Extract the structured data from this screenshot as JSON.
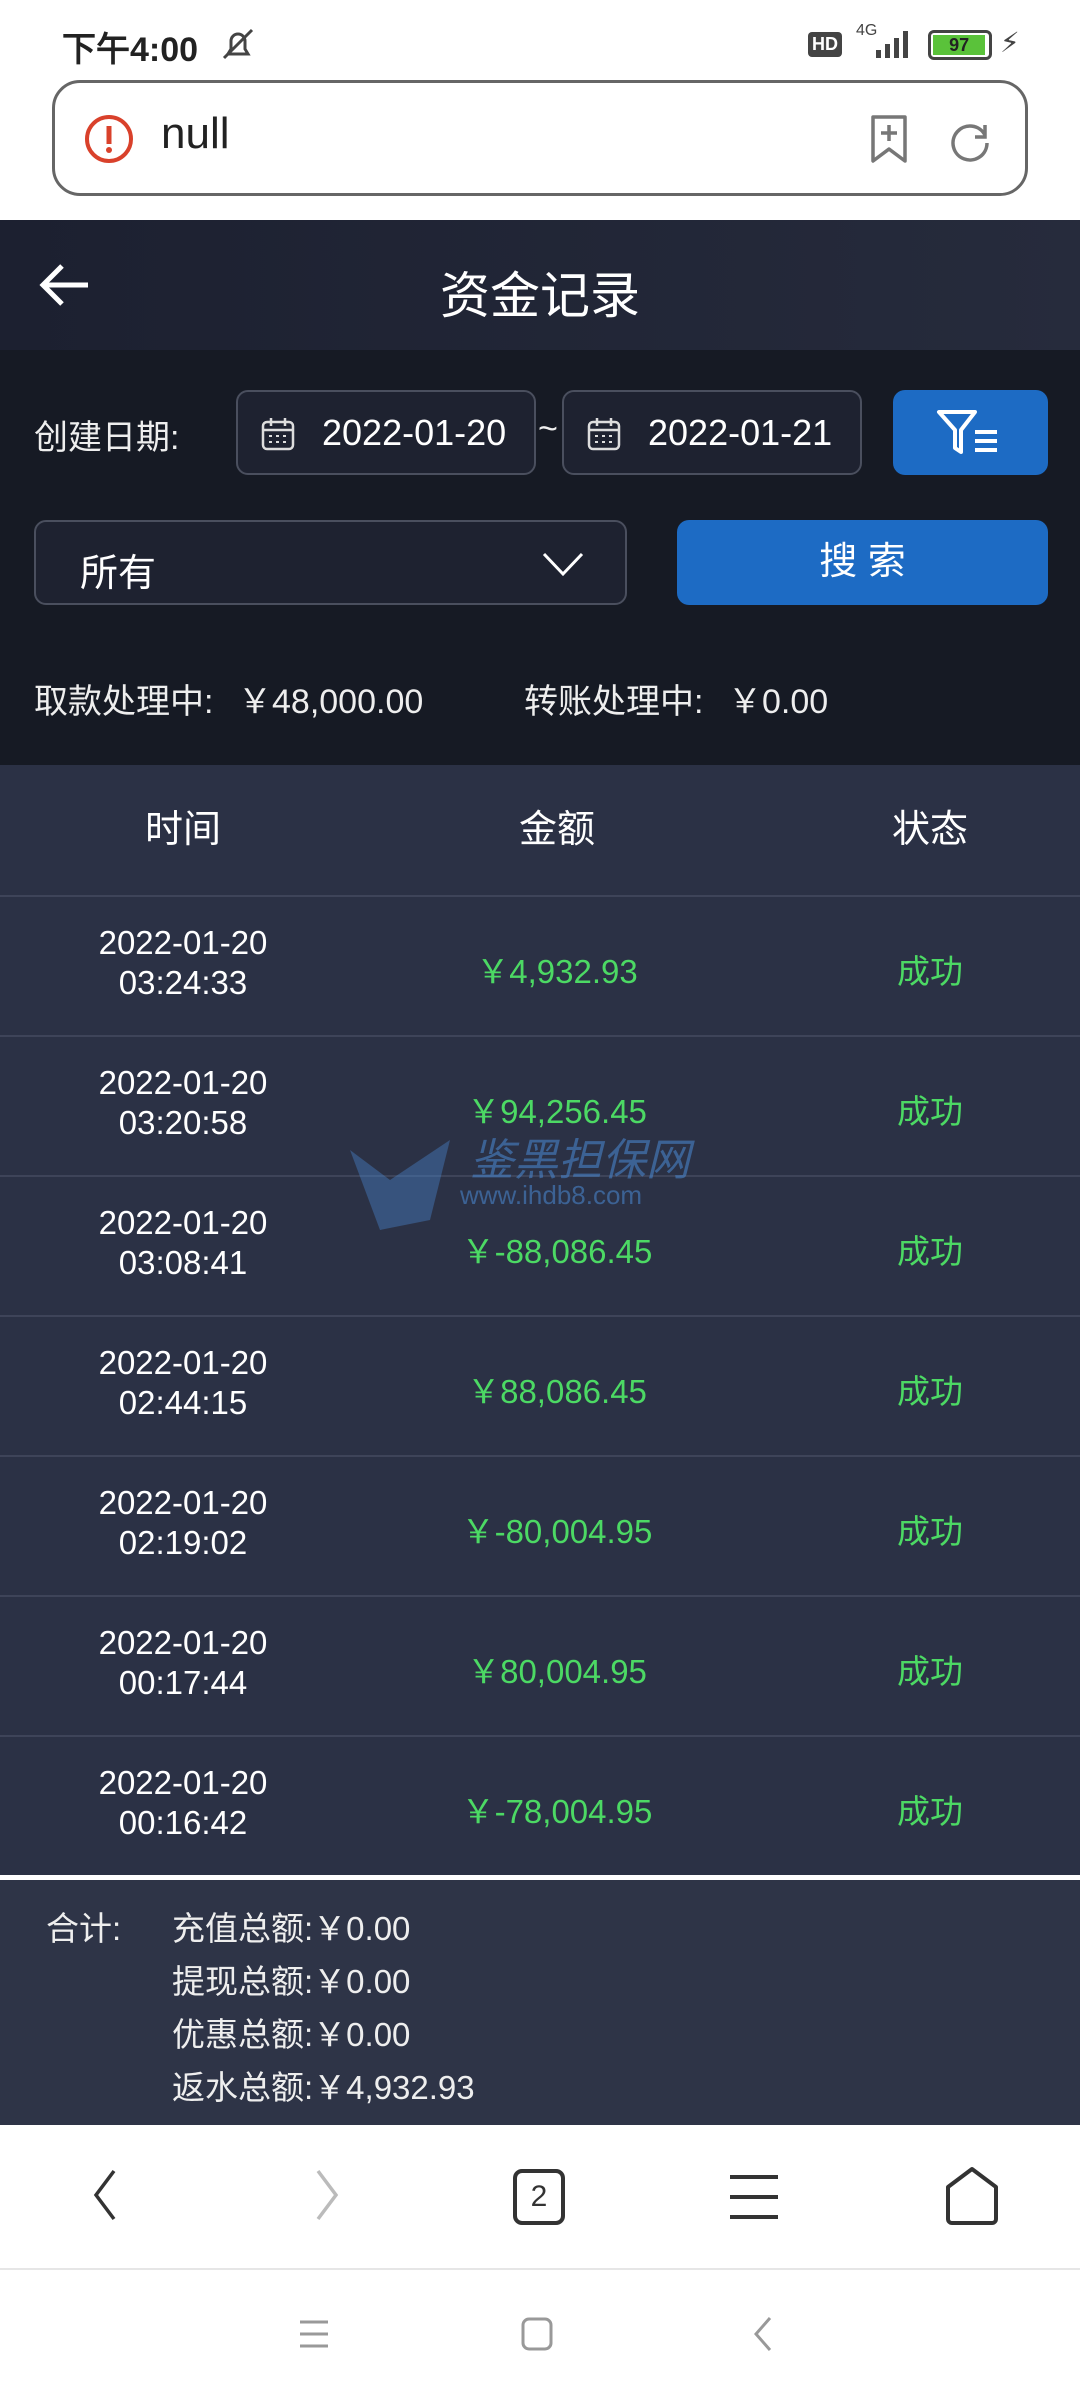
{
  "status_bar": {
    "time": "下午4:00",
    "battery": "97",
    "network": "4G",
    "hd": "HD"
  },
  "browser": {
    "url": "null",
    "tabs_count": "2"
  },
  "header": {
    "title": "资金记录"
  },
  "filter": {
    "date_label": "创建日期:",
    "start_date": "2022-01-20",
    "separator": "~",
    "end_date": "2022-01-21",
    "type_select": "所有",
    "search_label": "搜 索"
  },
  "pending": {
    "withdraw_label": "取款处理中:",
    "withdraw_value": "￥48,000.00",
    "transfer_label": "转账处理中:",
    "transfer_value": "￥0.00"
  },
  "table": {
    "columns": [
      "时间",
      "金额",
      "状态"
    ],
    "rows": [
      {
        "date": "2022-01-20",
        "time": "03:24:33",
        "amount": "￥4,932.93",
        "status": "成功"
      },
      {
        "date": "2022-01-20",
        "time": "03:20:58",
        "amount": "￥94,256.45",
        "status": "成功"
      },
      {
        "date": "2022-01-20",
        "time": "03:08:41",
        "amount": "￥-88,086.45",
        "status": "成功"
      },
      {
        "date": "2022-01-20",
        "time": "02:44:15",
        "amount": "￥88,086.45",
        "status": "成功"
      },
      {
        "date": "2022-01-20",
        "time": "02:19:02",
        "amount": "￥-80,004.95",
        "status": "成功"
      },
      {
        "date": "2022-01-20",
        "time": "00:17:44",
        "amount": "￥80,004.95",
        "status": "成功"
      },
      {
        "date": "2022-01-20",
        "time": "00:16:42",
        "amount": "￥-78,004.95",
        "status": "成功"
      }
    ]
  },
  "summary": {
    "label": "合计:",
    "items": [
      {
        "label": "充值总额:",
        "value": "￥0.00"
      },
      {
        "label": "提现总额:",
        "value": "￥0.00"
      },
      {
        "label": "优惠总额:",
        "value": "￥0.00"
      },
      {
        "label": "返水总额:",
        "value": "￥4,932.93"
      }
    ]
  },
  "watermark": {
    "name": "鉴黑担保网",
    "url": "www.ihdb8.com"
  },
  "colors": {
    "accent": "#1d6bc4",
    "success": "#4cd964",
    "background": "#2b3145",
    "error": "#d9412b"
  }
}
